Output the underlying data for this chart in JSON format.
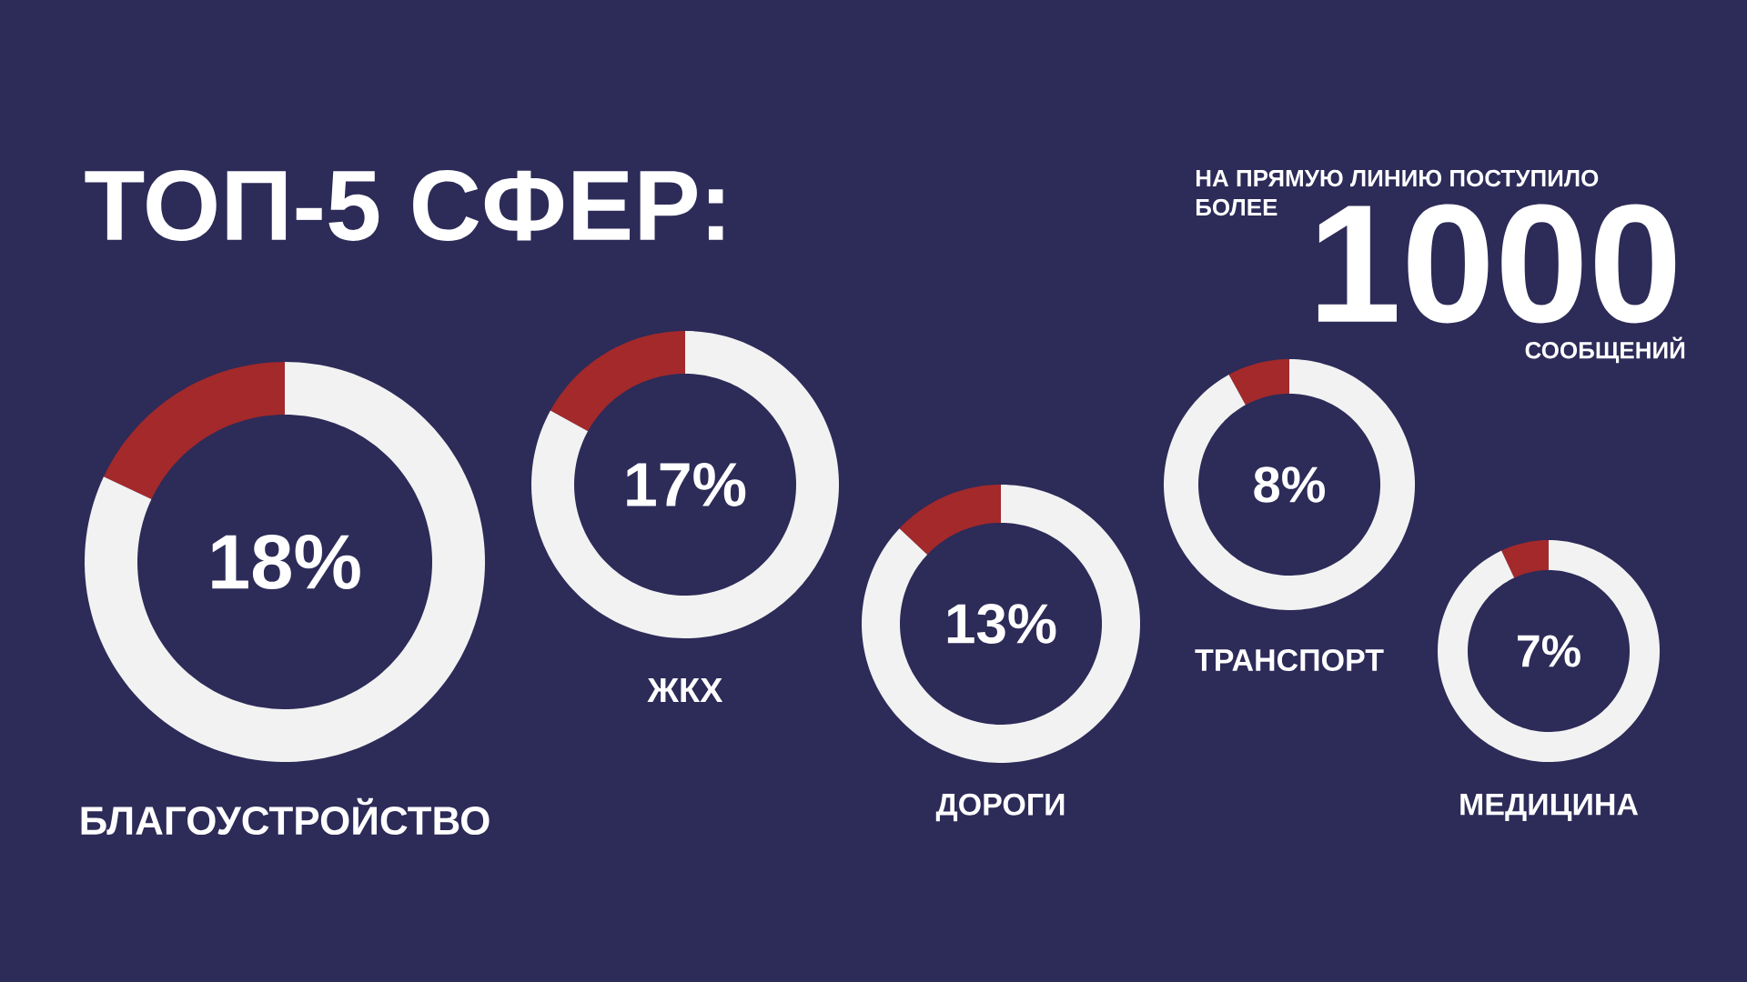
{
  "chart_data": [
    {
      "type": "other",
      "title": "ТОП-5 СФЕР:",
      "annotations": [
        "НА ПРЯМУЮ ЛИНИЮ ПОСТУПИЛО",
        "БОЛЕЕ",
        "1000",
        "СООБЩЕНИЙ"
      ]
    },
    {
      "type": "donut",
      "title": "БЛАГОУСТРОЙСТВО",
      "categories": [
        null,
        null
      ],
      "values": [
        18,
        82
      ],
      "colors": [
        "#a3292b",
        "#f2f2f2"
      ],
      "annotations": [
        "18%"
      ]
    },
    {
      "type": "donut",
      "title": "ЖКХ",
      "categories": [
        null,
        null
      ],
      "values": [
        17,
        83
      ],
      "colors": [
        "#a3292b",
        "#f2f2f2"
      ],
      "annotations": [
        "17%"
      ]
    },
    {
      "type": "donut",
      "title": "ДОРОГИ",
      "categories": [
        null,
        null
      ],
      "values": [
        13,
        87
      ],
      "colors": [
        "#a3292b",
        "#f2f2f2"
      ],
      "annotations": [
        "13%"
      ]
    },
    {
      "type": "donut",
      "title": "ТРАНСПОРТ",
      "categories": [
        null,
        null
      ],
      "values": [
        8,
        92
      ],
      "colors": [
        "#a3292b",
        "#f2f2f2"
      ],
      "annotations": [
        "8%"
      ]
    },
    {
      "type": "donut",
      "title": "МЕДИЦИНА",
      "categories": [
        null,
        null
      ],
      "values": [
        7,
        93
      ],
      "colors": [
        "#a3292b",
        "#f2f2f2"
      ],
      "annotations": [
        "7%"
      ]
    }
  ]
}
